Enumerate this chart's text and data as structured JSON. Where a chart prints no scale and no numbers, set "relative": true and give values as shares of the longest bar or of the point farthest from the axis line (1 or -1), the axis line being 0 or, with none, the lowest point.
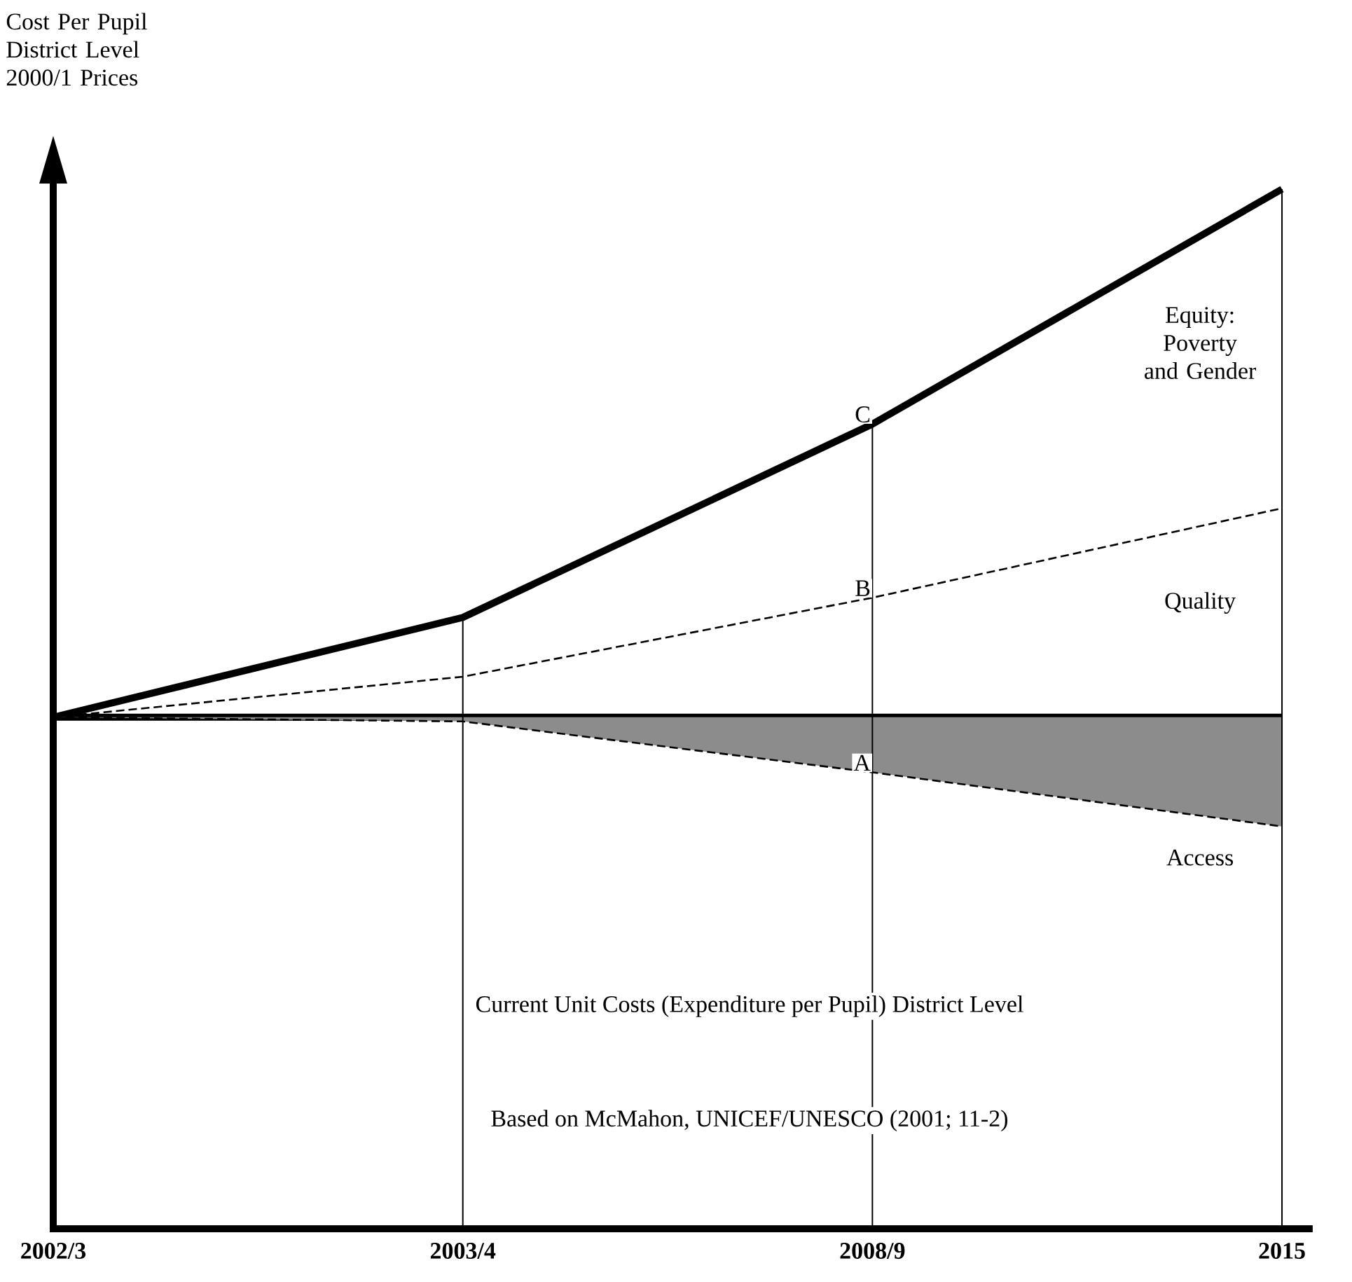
{
  "chart_data": {
    "type": "line",
    "relative": true,
    "ylabel": "Cost Per Pupil\nDistrict Level\n2000/1 Prices",
    "categories": [
      "2002/3",
      "2003/4",
      "2008/9",
      "2015"
    ],
    "tick_labels": "x",
    "grid": false,
    "marker": "none",
    "series": [
      {
        "color": "#000000",
        "line_style": "solid",
        "values": [
          0.492,
          0.492,
          0.492,
          0.492
        ]
      },
      {
        "color": "#000000",
        "line_style": "solid",
        "values": [
          0.492,
          0.588,
          0.774,
          1.0
        ]
      },
      {
        "color": "#000000",
        "line_style": "dashed",
        "values": [
          0.492,
          0.531,
          0.607,
          0.693
        ]
      },
      {
        "color": "#000000",
        "line_style": "dashed",
        "values": [
          0.492,
          0.488,
          0.439,
          0.387
        ],
        "lower": [
          0.492,
          0.488,
          0.439,
          0.387
        ],
        "upper": [
          0.492,
          0.492,
          0.492,
          0.492
        ]
      },
      {
        "type": "bar",
        "color": "#000000",
        "values": [
          null,
          0.588,
          0.774,
          1.0
        ]
      }
    ],
    "annotations": [
      {
        "text": "C",
        "x": "2008/9",
        "y": 0.774
      },
      {
        "text": "B",
        "x": "2008/9",
        "y": 0.607
      },
      {
        "text": "A",
        "x": "2008/9",
        "y": 0.439
      },
      "Equity: Poverty and Gender",
      "Quality",
      "Access",
      "Current Unit Costs (Expenditure per Pupil) District Level",
      "Based on McMahon, UNICEF/UNESCO (2001; 11-2)"
    ]
  }
}
